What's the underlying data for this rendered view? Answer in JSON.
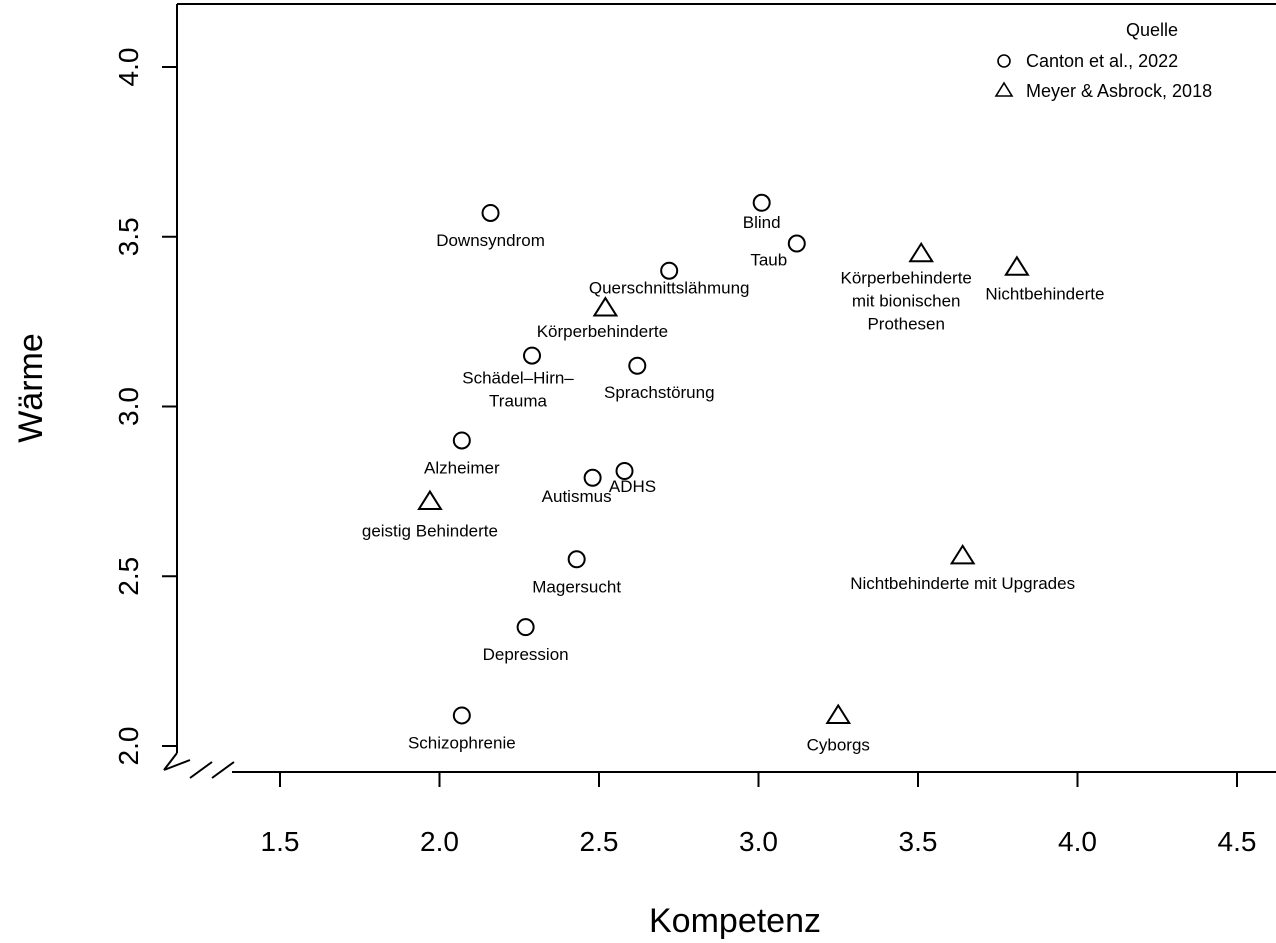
{
  "chart_data": {
    "type": "scatter",
    "xlabel": "Kompetenz",
    "ylabel": "Wärme",
    "xlim": [
      1.2,
      4.7
    ],
    "ylim": [
      1.95,
      4.2
    ],
    "x_ticks": [
      "1.5",
      "2.0",
      "2.5",
      "3.0",
      "3.5",
      "4.0",
      "4.5"
    ],
    "y_ticks": [
      "2.0",
      "2.5",
      "3.0",
      "3.5",
      "4.0"
    ],
    "grid": false,
    "axis_break": true,
    "legend": {
      "title": "Quelle",
      "position": "top-right",
      "entries": [
        {
          "label": "Canton et al., 2022",
          "marker": "circle"
        },
        {
          "label": "Meyer & Asbrock, 2018",
          "marker": "triangle"
        }
      ]
    },
    "series": [
      {
        "name": "Canton et al., 2022",
        "marker": "circle",
        "points": [
          {
            "label": "Downsyndrom",
            "x": 2.16,
            "y": 3.57
          },
          {
            "label": "Blind",
            "x": 3.01,
            "y": 3.6
          },
          {
            "label": "Taub",
            "x": 3.12,
            "y": 3.48
          },
          {
            "label": "Querschnittslähmung",
            "x": 2.72,
            "y": 3.4
          },
          {
            "label": "Schädel–Hirn–\nTrauma",
            "x": 2.29,
            "y": 3.15
          },
          {
            "label": "Sprachstörung",
            "x": 2.62,
            "y": 3.12
          },
          {
            "label": "Alzheimer",
            "x": 2.07,
            "y": 2.9
          },
          {
            "label": "ADHS",
            "x": 2.58,
            "y": 2.81
          },
          {
            "label": "Autismus",
            "x": 2.48,
            "y": 2.79
          },
          {
            "label": "Magersucht",
            "x": 2.43,
            "y": 2.55
          },
          {
            "label": "Depression",
            "x": 2.27,
            "y": 2.35
          },
          {
            "label": "Schizophrenie",
            "x": 2.07,
            "y": 2.09
          }
        ]
      },
      {
        "name": "Meyer & Asbrock, 2018",
        "marker": "triangle",
        "points": [
          {
            "label": "Körperbehinderte",
            "x": 2.52,
            "y": 3.29
          },
          {
            "label": "Körperbehinderte\nmit bionischen\nProthesen",
            "x": 3.51,
            "y": 3.45
          },
          {
            "label": "Nichtbehinderte",
            "x": 3.81,
            "y": 3.41
          },
          {
            "label": "geistig Behinderte",
            "x": 1.97,
            "y": 2.72
          },
          {
            "label": "Nichtbehinderte mit Upgrades",
            "x": 3.64,
            "y": 2.56
          },
          {
            "label": "Cyborgs",
            "x": 3.25,
            "y": 2.09
          }
        ]
      }
    ]
  }
}
